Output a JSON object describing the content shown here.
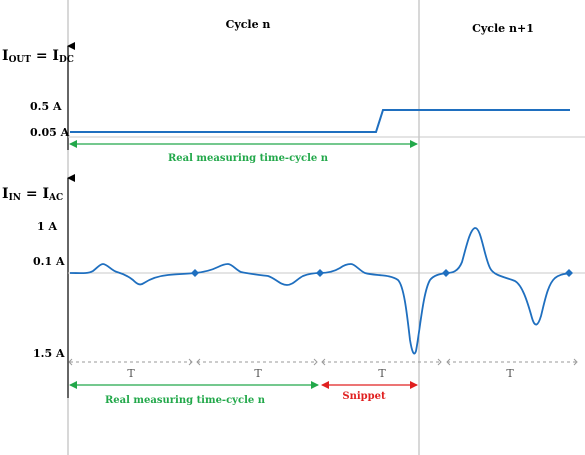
{
  "cycles": {
    "n": "Cycle n",
    "n1": "Cycle n+1"
  },
  "output_axis": {
    "label_main": "I",
    "label_sub_out": "OUT",
    "label_eq": " = I",
    "label_sub_dc": "DC",
    "tick_high": "0.5 A",
    "tick_low": "0.05 A"
  },
  "input_axis": {
    "label_main": "I",
    "label_sub_in": "IN",
    "label_eq": " = I",
    "label_sub_ac": "AC",
    "tick_1a": "1 A",
    "tick_01a": "0.1 A",
    "tick_15a": "1.5 A"
  },
  "annotations": {
    "real_measuring_top": "Real measuring time-cycle n",
    "real_measuring_bottom": "Real measuring time-cycle n",
    "snippet": "Snippet",
    "period_labels": [
      "T",
      "T",
      "T",
      "T"
    ]
  },
  "colors": {
    "signal": "#1f6fbf",
    "green": "#22a84a",
    "red": "#e02020",
    "grid": "#b0b0b0",
    "marker": "#1f6fbf"
  }
}
